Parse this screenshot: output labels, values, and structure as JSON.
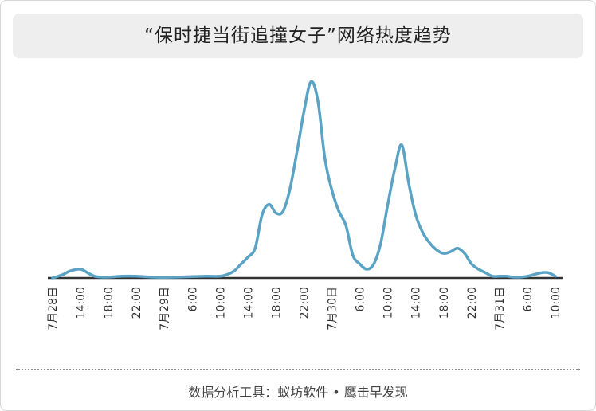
{
  "title": "“保时捷当街追撞女子”网络热度趋势",
  "source": "数据分析工具：蚁坊软件 • 鹰击早发现",
  "chart_data": {
    "type": "line",
    "title": "“保时捷当街追撞女子”网络热度趋势",
    "xlabel": "",
    "ylabel": "",
    "x_unit": "hours since 7月28日 0:00",
    "categories": [
      "7月28日",
      "14:00",
      "18:00",
      "22:00",
      "7月29日",
      "6:00",
      "10:00",
      "14:00",
      "18:00",
      "22:00",
      "7月30日",
      "6:00",
      "10:00",
      "14:00",
      "18:00",
      "22:00",
      "7月31日",
      "6:00",
      "10:00"
    ],
    "category_hours": [
      10,
      14,
      18,
      22,
      26,
      30,
      34,
      38,
      42,
      46,
      50,
      54,
      58,
      62,
      66,
      70,
      74,
      78,
      82
    ],
    "xlim": [
      10,
      82
    ],
    "ylim": [
      0,
      105
    ],
    "grid": false,
    "legend": "none",
    "line_color": "#5aa3c4",
    "axis_color": "#333333",
    "series": [
      {
        "name": "",
        "points": [
          [
            10,
            0
          ],
          [
            11.5,
            2
          ],
          [
            12.5,
            4
          ],
          [
            14,
            5
          ],
          [
            15,
            3
          ],
          [
            16,
            1
          ],
          [
            17,
            0.5
          ],
          [
            18,
            0.5
          ],
          [
            20,
            1
          ],
          [
            22,
            1
          ],
          [
            24,
            0.5
          ],
          [
            26,
            0.3
          ],
          [
            28,
            0.5
          ],
          [
            30,
            0.8
          ],
          [
            32,
            1
          ],
          [
            34,
            1
          ],
          [
            35,
            2
          ],
          [
            36,
            4
          ],
          [
            37,
            8
          ],
          [
            38,
            12
          ],
          [
            39,
            17
          ],
          [
            40,
            36
          ],
          [
            41,
            42
          ],
          [
            42,
            37
          ],
          [
            43,
            38
          ],
          [
            44,
            51
          ],
          [
            45,
            72
          ],
          [
            46,
            95
          ],
          [
            47,
            112
          ],
          [
            48,
            101
          ],
          [
            49,
            68
          ],
          [
            50,
            50
          ],
          [
            51,
            38
          ],
          [
            52,
            30
          ],
          [
            53,
            13
          ],
          [
            54,
            8
          ],
          [
            55,
            5
          ],
          [
            56,
            8
          ],
          [
            57,
            20
          ],
          [
            58,
            42
          ],
          [
            59,
            62
          ],
          [
            60,
            76
          ],
          [
            61,
            54
          ],
          [
            62,
            36
          ],
          [
            63,
            26
          ],
          [
            64,
            20
          ],
          [
            65,
            16
          ],
          [
            66,
            14
          ],
          [
            67,
            15
          ],
          [
            68,
            17
          ],
          [
            69,
            14
          ],
          [
            70,
            8
          ],
          [
            71,
            5
          ],
          [
            72,
            3
          ],
          [
            73,
            1
          ],
          [
            74,
            1
          ],
          [
            75,
            1
          ],
          [
            76,
            0.5
          ],
          [
            77,
            0.5
          ],
          [
            78,
            1
          ],
          [
            79,
            2
          ],
          [
            80,
            3
          ],
          [
            81,
            3
          ],
          [
            82,
            1
          ]
        ]
      }
    ]
  }
}
